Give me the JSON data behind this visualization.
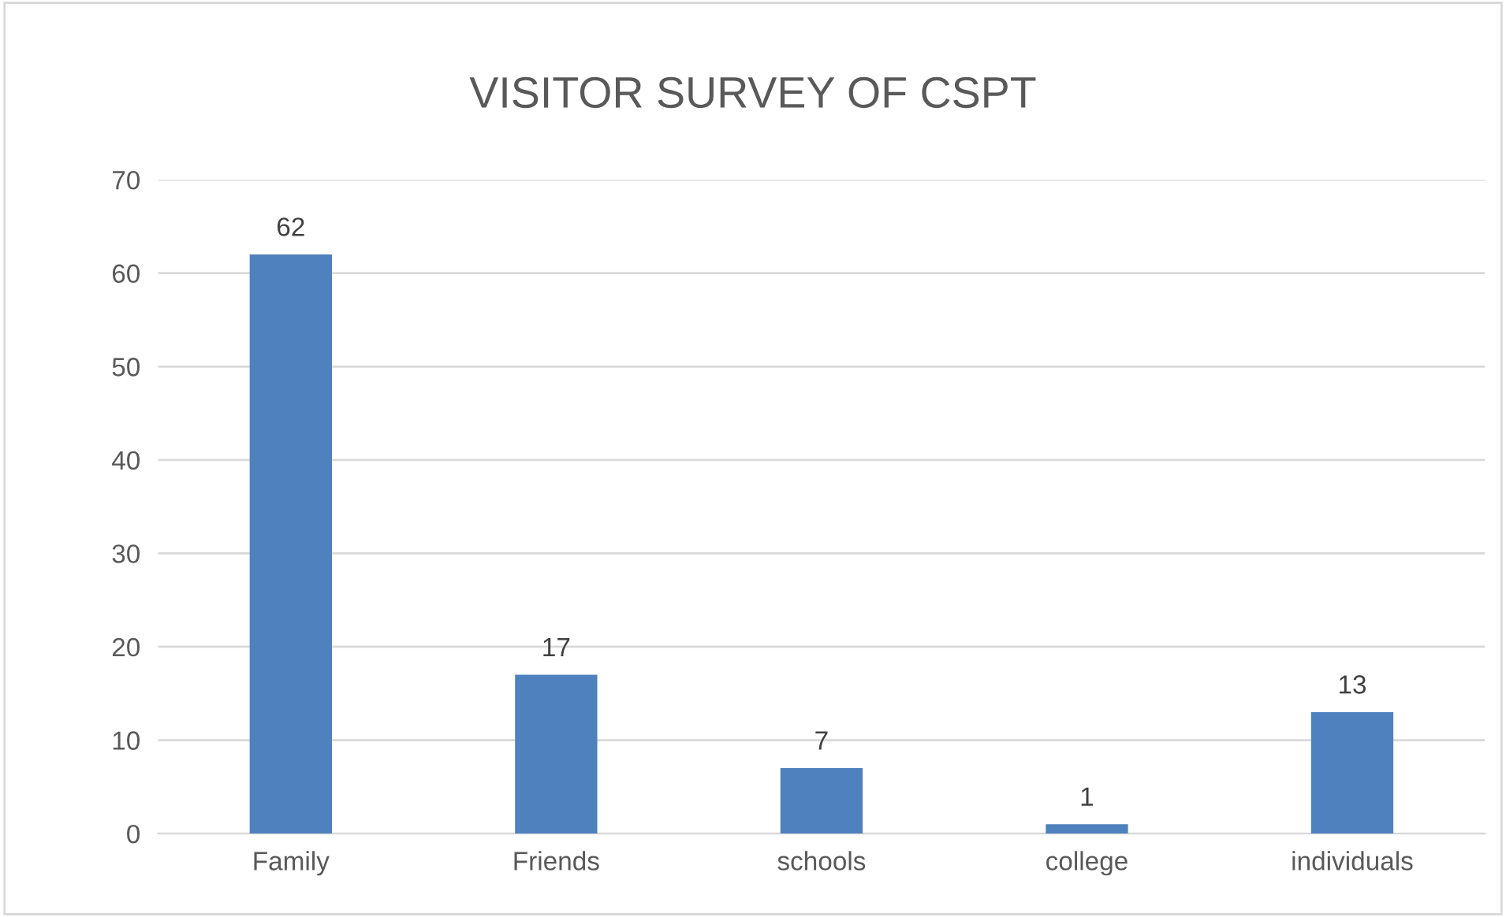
{
  "chart_data": {
    "type": "bar",
    "title": "VISITOR SURVEY OF CSPT",
    "categories": [
      "Family",
      "Friends",
      "schools",
      "college",
      "individuals"
    ],
    "values": [
      62,
      17,
      7,
      1,
      13
    ],
    "color": "#4e81bd",
    "ylim": [
      0,
      70
    ],
    "yticks": [
      0,
      10,
      20,
      30,
      40,
      50,
      60,
      70
    ],
    "grid": "y",
    "data_labels": true
  }
}
